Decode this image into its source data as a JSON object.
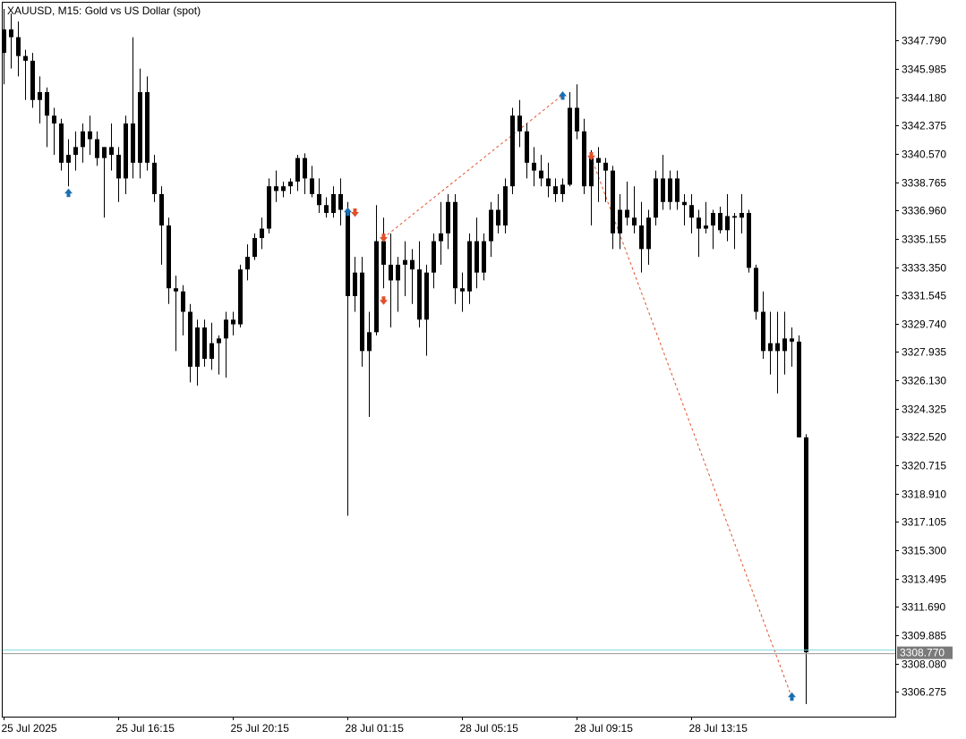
{
  "header": {
    "title": "XAUUSD, M15:  Gold vs US Dollar (spot)"
  },
  "colors": {
    "background": "#ffffff",
    "frame": "#000000",
    "candle": "#000000",
    "bid_line": "#7fd8d8",
    "buy_arrow": "#1a6fb0",
    "sell_arrow": "#e0502a",
    "trade_line": "#e0502a",
    "price_tag_bg": "#7a7a7a"
  },
  "chart_data": {
    "type": "candlestick",
    "symbol": "XAUUSD",
    "timeframe": "M15",
    "ylim": [
      3304.7,
      3350.2
    ],
    "y_ticks": [
      "3347.790",
      "3345.985",
      "3344.180",
      "3342.375",
      "3340.570",
      "3338.765",
      "3336.960",
      "3335.155",
      "3333.350",
      "3331.545",
      "3329.740",
      "3327.935",
      "3326.130",
      "3324.325",
      "3322.520",
      "3320.715",
      "3318.910",
      "3317.105",
      "3315.300",
      "3313.495",
      "3311.690",
      "3309.885",
      "3308.080",
      "3306.275"
    ],
    "x_ticks": [
      {
        "label": "25 Jul 2025",
        "index": 0
      },
      {
        "label": "25 Jul 16:15",
        "index": 16
      },
      {
        "label": "25 Jul 20:15",
        "index": 32
      },
      {
        "label": "28 Jul 01:15",
        "index": 48
      },
      {
        "label": "28 Jul 05:15",
        "index": 64
      },
      {
        "label": "28 Jul 09:15",
        "index": 80
      },
      {
        "label": "28 Jul 13:15",
        "index": 96
      }
    ],
    "current_price": "3308.770",
    "candles": [
      {
        "o": 3347.0,
        "h": 3349.8,
        "l": 3345.0,
        "c": 3348.5
      },
      {
        "o": 3348.5,
        "h": 3349.5,
        "l": 3346.0,
        "c": 3348.0
      },
      {
        "o": 3348.0,
        "h": 3349.0,
        "l": 3345.5,
        "c": 3346.8
      },
      {
        "o": 3346.8,
        "h": 3347.2,
        "l": 3344.0,
        "c": 3346.5
      },
      {
        "o": 3346.5,
        "h": 3347.0,
        "l": 3343.5,
        "c": 3344.0
      },
      {
        "o": 3344.0,
        "h": 3345.5,
        "l": 3342.5,
        "c": 3344.5
      },
      {
        "o": 3344.5,
        "h": 3344.8,
        "l": 3341.0,
        "c": 3343.0
      },
      {
        "o": 3343.0,
        "h": 3343.5,
        "l": 3340.5,
        "c": 3342.5
      },
      {
        "o": 3342.5,
        "h": 3342.8,
        "l": 3339.5,
        "c": 3340.0
      },
      {
        "o": 3340.0,
        "h": 3341.5,
        "l": 3338.5,
        "c": 3340.5
      },
      {
        "o": 3340.5,
        "h": 3342.0,
        "l": 3339.5,
        "c": 3341.0
      },
      {
        "o": 3341.0,
        "h": 3342.5,
        "l": 3340.0,
        "c": 3342.0
      },
      {
        "o": 3342.0,
        "h": 3343.0,
        "l": 3340.5,
        "c": 3341.5
      },
      {
        "o": 3341.5,
        "h": 3342.0,
        "l": 3339.8,
        "c": 3340.3
      },
      {
        "o": 3340.3,
        "h": 3341.0,
        "l": 3336.5,
        "c": 3341.0
      },
      {
        "o": 3341.0,
        "h": 3342.5,
        "l": 3339.5,
        "c": 3340.5
      },
      {
        "o": 3340.5,
        "h": 3341.0,
        "l": 3337.5,
        "c": 3339.0
      },
      {
        "o": 3339.0,
        "h": 3343.0,
        "l": 3338.0,
        "c": 3342.5
      },
      {
        "o": 3342.5,
        "h": 3348.0,
        "l": 3339.0,
        "c": 3340.0
      },
      {
        "o": 3340.0,
        "h": 3346.0,
        "l": 3339.0,
        "c": 3344.5
      },
      {
        "o": 3344.5,
        "h": 3345.5,
        "l": 3339.5,
        "c": 3340.0
      },
      {
        "o": 3340.0,
        "h": 3340.5,
        "l": 3337.5,
        "c": 3338.0
      },
      {
        "o": 3338.0,
        "h": 3338.5,
        "l": 3333.5,
        "c": 3336.0
      },
      {
        "o": 3336.0,
        "h": 3336.5,
        "l": 3331.0,
        "c": 3332.0
      },
      {
        "o": 3332.0,
        "h": 3332.8,
        "l": 3328.0,
        "c": 3331.8
      },
      {
        "o": 3331.8,
        "h": 3332.2,
        "l": 3329.0,
        "c": 3330.5
      },
      {
        "o": 3330.5,
        "h": 3331.0,
        "l": 3326.0,
        "c": 3327.0
      },
      {
        "o": 3327.0,
        "h": 3330.0,
        "l": 3325.8,
        "c": 3329.5
      },
      {
        "o": 3329.5,
        "h": 3330.0,
        "l": 3327.0,
        "c": 3327.5
      },
      {
        "o": 3327.5,
        "h": 3329.8,
        "l": 3326.8,
        "c": 3328.5
      },
      {
        "o": 3328.5,
        "h": 3329.0,
        "l": 3326.5,
        "c": 3328.8
      },
      {
        "o": 3328.8,
        "h": 3330.5,
        "l": 3326.3,
        "c": 3330.0
      },
      {
        "o": 3330.0,
        "h": 3330.5,
        "l": 3329.0,
        "c": 3329.7
      },
      {
        "o": 3329.7,
        "h": 3333.5,
        "l": 3329.5,
        "c": 3333.2
      },
      {
        "o": 3333.2,
        "h": 3334.8,
        "l": 3332.5,
        "c": 3334.0
      },
      {
        "o": 3334.0,
        "h": 3335.5,
        "l": 3333.8,
        "c": 3335.2
      },
      {
        "o": 3335.2,
        "h": 3336.5,
        "l": 3334.5,
        "c": 3335.8
      },
      {
        "o": 3335.8,
        "h": 3339.0,
        "l": 3335.5,
        "c": 3338.5
      },
      {
        "o": 3338.5,
        "h": 3339.5,
        "l": 3337.5,
        "c": 3338.2
      },
      {
        "o": 3338.2,
        "h": 3338.8,
        "l": 3337.8,
        "c": 3338.5
      },
      {
        "o": 3338.5,
        "h": 3339.0,
        "l": 3338.0,
        "c": 3338.8
      },
      {
        "o": 3338.8,
        "h": 3340.5,
        "l": 3338.2,
        "c": 3340.3
      },
      {
        "o": 3340.3,
        "h": 3340.6,
        "l": 3338.0,
        "c": 3339.0
      },
      {
        "o": 3339.0,
        "h": 3339.8,
        "l": 3337.8,
        "c": 3338.0
      },
      {
        "o": 3338.0,
        "h": 3339.0,
        "l": 3336.8,
        "c": 3337.3
      },
      {
        "o": 3337.3,
        "h": 3337.8,
        "l": 3336.5,
        "c": 3336.8
      },
      {
        "o": 3336.8,
        "h": 3338.5,
        "l": 3336.5,
        "c": 3338.0
      },
      {
        "o": 3338.0,
        "h": 3339.0,
        "l": 3336.0,
        "c": 3337.0
      },
      {
        "o": 3337.0,
        "h": 3337.5,
        "l": 3317.5,
        "c": 3331.5
      },
      {
        "o": 3331.5,
        "h": 3334.0,
        "l": 3330.5,
        "c": 3333.0
      },
      {
        "o": 3333.0,
        "h": 3334.0,
        "l": 3327.0,
        "c": 3328.0
      },
      {
        "o": 3328.0,
        "h": 3330.5,
        "l": 3323.8,
        "c": 3329.2
      },
      {
        "o": 3329.2,
        "h": 3337.3,
        "l": 3329.0,
        "c": 3335.0
      },
      {
        "o": 3335.0,
        "h": 3336.5,
        "l": 3332.0,
        "c": 3333.5
      },
      {
        "o": 3333.5,
        "h": 3335.5,
        "l": 3329.5,
        "c": 3332.5
      },
      {
        "o": 3332.5,
        "h": 3334.0,
        "l": 3330.5,
        "c": 3333.5
      },
      {
        "o": 3333.5,
        "h": 3335.0,
        "l": 3331.5,
        "c": 3333.8
      },
      {
        "o": 3333.8,
        "h": 3334.5,
        "l": 3331.0,
        "c": 3333.2
      },
      {
        "o": 3333.2,
        "h": 3335.0,
        "l": 3329.5,
        "c": 3330.0
      },
      {
        "o": 3330.0,
        "h": 3333.5,
        "l": 3327.7,
        "c": 3333.0
      },
      {
        "o": 3333.0,
        "h": 3335.5,
        "l": 3332.0,
        "c": 3335.0
      },
      {
        "o": 3335.0,
        "h": 3337.5,
        "l": 3333.5,
        "c": 3335.5
      },
      {
        "o": 3335.5,
        "h": 3338.0,
        "l": 3334.5,
        "c": 3337.5
      },
      {
        "o": 3337.5,
        "h": 3338.0,
        "l": 3331.0,
        "c": 3332.0
      },
      {
        "o": 3332.0,
        "h": 3333.0,
        "l": 3330.5,
        "c": 3331.8
      },
      {
        "o": 3331.8,
        "h": 3335.5,
        "l": 3331.0,
        "c": 3335.0
      },
      {
        "o": 3335.0,
        "h": 3336.5,
        "l": 3332.0,
        "c": 3333.0
      },
      {
        "o": 3333.0,
        "h": 3335.5,
        "l": 3332.5,
        "c": 3335.0
      },
      {
        "o": 3335.0,
        "h": 3337.5,
        "l": 3334.0,
        "c": 3337.0
      },
      {
        "o": 3337.0,
        "h": 3338.0,
        "l": 3335.5,
        "c": 3336.0
      },
      {
        "o": 3336.0,
        "h": 3339.0,
        "l": 3335.5,
        "c": 3338.5
      },
      {
        "o": 3338.5,
        "h": 3343.5,
        "l": 3338.0,
        "c": 3343.0
      },
      {
        "o": 3343.0,
        "h": 3344.0,
        "l": 3341.0,
        "c": 3342.0
      },
      {
        "o": 3342.0,
        "h": 3342.5,
        "l": 3339.0,
        "c": 3340.0
      },
      {
        "o": 3340.0,
        "h": 3341.0,
        "l": 3338.5,
        "c": 3339.5
      },
      {
        "o": 3339.5,
        "h": 3340.5,
        "l": 3338.5,
        "c": 3339.0
      },
      {
        "o": 3339.0,
        "h": 3340.0,
        "l": 3337.8,
        "c": 3338.5
      },
      {
        "o": 3338.5,
        "h": 3339.0,
        "l": 3337.5,
        "c": 3338.0
      },
      {
        "o": 3338.0,
        "h": 3339.0,
        "l": 3337.5,
        "c": 3338.6
      },
      {
        "o": 3338.6,
        "h": 3344.5,
        "l": 3338.5,
        "c": 3343.5
      },
      {
        "o": 3343.5,
        "h": 3345.0,
        "l": 3341.5,
        "c": 3342.0
      },
      {
        "o": 3342.0,
        "h": 3342.8,
        "l": 3338.0,
        "c": 3338.5
      },
      {
        "o": 3338.5,
        "h": 3340.8,
        "l": 3336.0,
        "c": 3340.3
      },
      {
        "o": 3340.3,
        "h": 3341.0,
        "l": 3337.5,
        "c": 3340.0
      },
      {
        "o": 3340.0,
        "h": 3340.3,
        "l": 3337.5,
        "c": 3339.5
      },
      {
        "o": 3339.5,
        "h": 3339.8,
        "l": 3334.5,
        "c": 3335.5
      },
      {
        "o": 3335.5,
        "h": 3338.0,
        "l": 3334.5,
        "c": 3337.0
      },
      {
        "o": 3337.0,
        "h": 3338.8,
        "l": 3336.0,
        "c": 3336.5
      },
      {
        "o": 3336.5,
        "h": 3338.5,
        "l": 3335.5,
        "c": 3336.0
      },
      {
        "o": 3336.0,
        "h": 3337.5,
        "l": 3333.0,
        "c": 3334.5
      },
      {
        "o": 3334.5,
        "h": 3337.0,
        "l": 3333.5,
        "c": 3336.5
      },
      {
        "o": 3336.5,
        "h": 3339.5,
        "l": 3336.0,
        "c": 3339.0
      },
      {
        "o": 3339.0,
        "h": 3340.5,
        "l": 3337.0,
        "c": 3337.5
      },
      {
        "o": 3337.5,
        "h": 3339.5,
        "l": 3337.0,
        "c": 3339.0
      },
      {
        "o": 3339.0,
        "h": 3339.5,
        "l": 3337.0,
        "c": 3337.5
      },
      {
        "o": 3337.5,
        "h": 3338.0,
        "l": 3336.0,
        "c": 3337.3
      },
      {
        "o": 3337.3,
        "h": 3338.0,
        "l": 3335.5,
        "c": 3336.5
      },
      {
        "o": 3336.5,
        "h": 3337.0,
        "l": 3334.0,
        "c": 3335.8
      },
      {
        "o": 3335.8,
        "h": 3337.5,
        "l": 3335.5,
        "c": 3336.0
      },
      {
        "o": 3336.0,
        "h": 3337.0,
        "l": 3334.5,
        "c": 3336.8
      },
      {
        "o": 3336.8,
        "h": 3337.2,
        "l": 3335.5,
        "c": 3335.7
      },
      {
        "o": 3335.7,
        "h": 3338.0,
        "l": 3335.0,
        "c": 3336.6
      },
      {
        "o": 3336.6,
        "h": 3336.8,
        "l": 3334.5,
        "c": 3336.5
      },
      {
        "o": 3336.5,
        "h": 3338.0,
        "l": 3335.5,
        "c": 3336.8
      },
      {
        "o": 3336.8,
        "h": 3337.0,
        "l": 3333.0,
        "c": 3333.3
      },
      {
        "o": 3333.3,
        "h": 3333.5,
        "l": 3330.0,
        "c": 3330.5
      },
      {
        "o": 3330.5,
        "h": 3331.8,
        "l": 3327.5,
        "c": 3328.0
      },
      {
        "o": 3328.0,
        "h": 3330.5,
        "l": 3326.5,
        "c": 3328.5
      },
      {
        "o": 3328.5,
        "h": 3330.5,
        "l": 3325.3,
        "c": 3328.0
      },
      {
        "o": 3328.0,
        "h": 3330.5,
        "l": 3326.5,
        "c": 3328.8
      },
      {
        "o": 3328.8,
        "h": 3329.5,
        "l": 3327.0,
        "c": 3328.6
      },
      {
        "o": 3328.6,
        "h": 3329.0,
        "l": 3322.5,
        "c": 3322.5
      },
      {
        "o": 3322.5,
        "h": 3322.7,
        "l": 3305.5,
        "c": 3308.8
      }
    ],
    "trade_markers": [
      {
        "index": 9,
        "price": 3338.1,
        "dir": "buy"
      },
      {
        "index": 48,
        "price": 3336.9,
        "dir": "buy"
      },
      {
        "index": 49,
        "price": 3336.8,
        "dir": "sell"
      },
      {
        "index": 53,
        "price": 3335.2,
        "dir": "sell"
      },
      {
        "index": 53,
        "price": 3331.2,
        "dir": "sell"
      },
      {
        "index": 78,
        "price": 3344.3,
        "dir": "buy"
      },
      {
        "index": 82,
        "price": 3340.4,
        "dir": "sell"
      },
      {
        "index": 110,
        "price": 3306.0,
        "dir": "buy"
      }
    ],
    "trade_lines": [
      {
        "from_index": 53,
        "from_price": 3335.2,
        "to_index": 78,
        "to_price": 3344.3
      },
      {
        "from_index": 82,
        "from_price": 3340.4,
        "to_index": 110,
        "to_price": 3306.0
      }
    ]
  }
}
